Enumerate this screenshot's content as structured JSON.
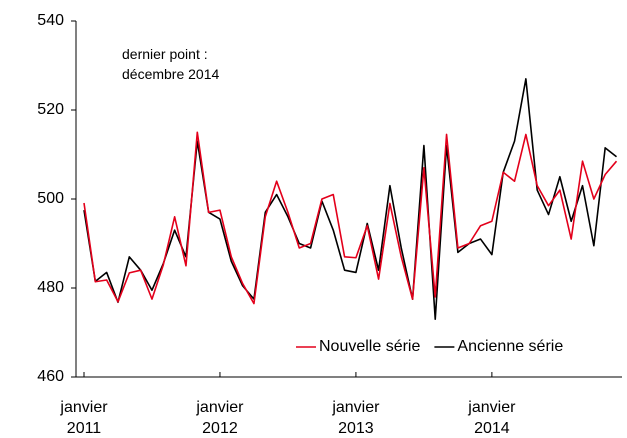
{
  "chart_data": {
    "type": "line",
    "annotation": "dernier point :\ndécembre 2014",
    "categories": [
      "janvier\n2011",
      null,
      null,
      null,
      null,
      null,
      null,
      null,
      null,
      null,
      null,
      null,
      "janvier\n2012",
      null,
      null,
      null,
      null,
      null,
      null,
      null,
      null,
      null,
      null,
      null,
      "janvier\n2013",
      null,
      null,
      null,
      null,
      null,
      null,
      null,
      null,
      null,
      null,
      null,
      "janvier\n2014",
      null,
      null,
      null,
      null,
      null,
      null,
      null,
      null,
      null,
      null,
      null
    ],
    "series": [
      {
        "name": "Nouvelle série",
        "color": "#e3001b",
        "values": [
          499.1,
          481.4,
          481.8,
          476.9,
          483.4,
          484.0,
          477.5,
          485.2,
          496,
          485,
          515,
          497,
          497.5,
          487,
          481,
          476.5,
          496,
          504,
          497,
          489,
          490,
          500,
          501,
          487,
          486.8,
          494,
          482,
          499,
          487,
          477.5,
          507,
          478,
          514.5,
          489,
          490,
          494,
          495,
          506,
          504,
          514.5,
          503,
          498.5,
          502,
          491,
          508.5,
          500,
          505.5,
          508.5
        ]
      },
      {
        "name": "Ancienne série",
        "color": "#000000",
        "values": [
          497.5,
          481.5,
          483.5,
          476.8,
          487,
          484,
          479.5,
          485.5,
          493,
          487,
          513,
          497,
          495.5,
          486,
          480.5,
          477.5,
          497,
          501,
          496,
          490,
          489,
          499.5,
          493,
          484,
          483.5,
          494.5,
          484,
          503,
          489,
          477.5,
          512,
          473,
          512,
          488,
          490,
          491,
          487.5,
          506,
          513,
          527,
          502,
          496.5,
          505,
          495,
          503,
          489.5,
          511.5,
          509.5
        ]
      }
    ],
    "ylim": [
      460,
      540
    ],
    "yticks": [
      460,
      480,
      500,
      520,
      540
    ],
    "legend": "lower right"
  }
}
